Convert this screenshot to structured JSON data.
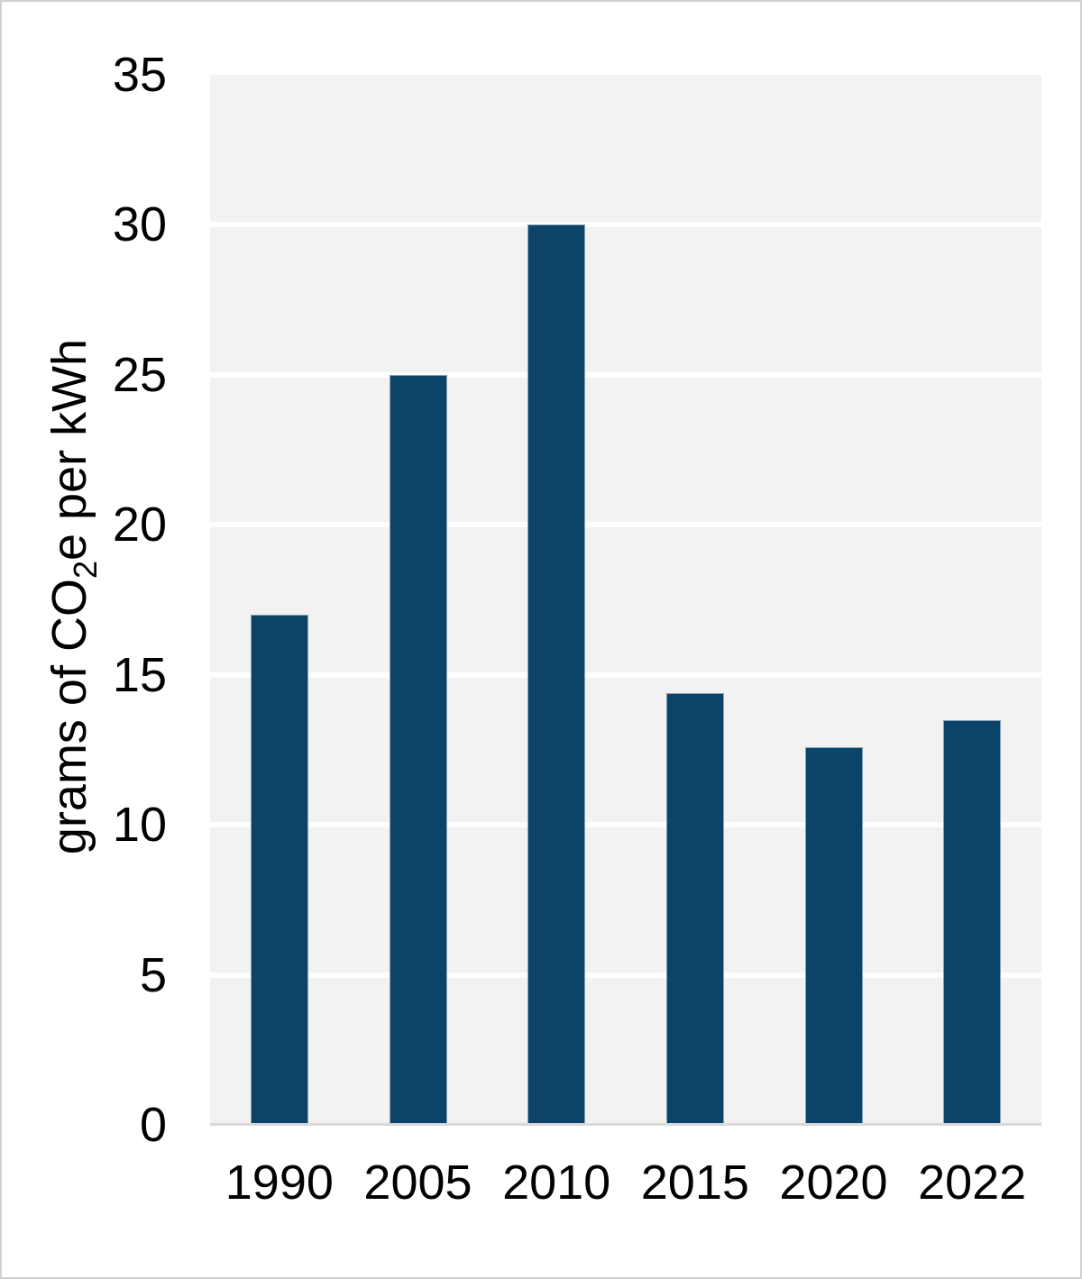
{
  "chart_data": {
    "type": "bar",
    "categories": [
      "1990",
      "2005",
      "2010",
      "2015",
      "2020",
      "2022"
    ],
    "values": [
      17,
      25,
      30,
      14.4,
      12.6,
      13.5
    ],
    "title": "",
    "xlabel": "",
    "ylabel": "grams of CO₂e per kWh",
    "ylabel_parts": {
      "pre": "grams of CO",
      "sub": "2",
      "post": "e per kWh"
    },
    "ylim": [
      0,
      35
    ],
    "yticks": [
      0,
      5,
      10,
      15,
      20,
      25,
      30,
      35
    ],
    "grid": "horizontal white gridlines on",
    "legend": "none",
    "colors": {
      "bar": "#0b4369",
      "bar_border": "#87a2b4",
      "plot_bg": "#f2f2f2",
      "gridline": "#ffffff",
      "axis_line": "#d9d9d9",
      "text": "#000000",
      "page_border": "#d0d0d0",
      "page_bg": "#ffffff"
    }
  }
}
